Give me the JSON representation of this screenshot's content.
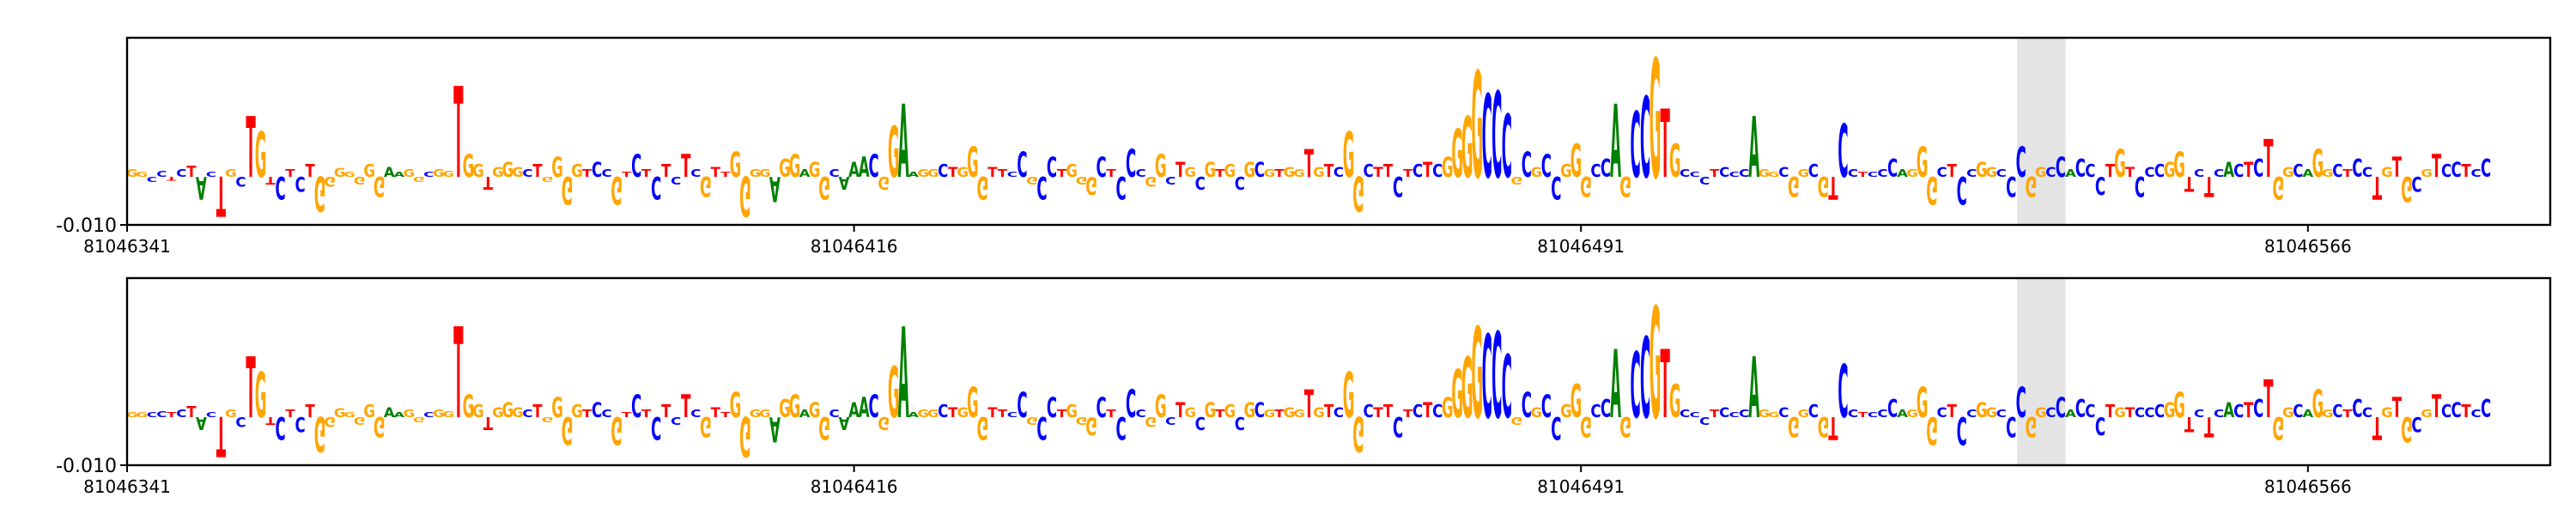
{
  "chart_data": [
    {
      "type": "sequence-logo",
      "title": "",
      "xlabel": "",
      "ylabel": "",
      "y_tick_labels": [
        "-0.010"
      ],
      "x_tick_labels": [
        "81046341",
        "81046416",
        "81046491",
        "81046566"
      ],
      "x_ticks": [
        81046341,
        81046416,
        81046491,
        81046566
      ],
      "xlim": [
        81046341,
        81046591
      ],
      "highlight_range": [
        81046536,
        81046541
      ],
      "highlight_color": "#e4e4e4",
      "base_colors": {
        "A": "#008000",
        "C": "#0000ff",
        "G": "#ffa500",
        "T": "#ff0000"
      },
      "grid": false,
      "legend": "none",
      "sequence": "GGCCTCTACTGCTGTCTCTGGGGGGGAAGGCGGTGGTGGGCTGGGGTCCGTCTCTCTCGTTGGGGAGGAGGCAAACGGAAGGCTGGGTTCCGCCTGGGCTCCCGGCTGCGTGCGCGTGGTGTCGGCTTCTCTCGGGGCCCGCGCCGGGCCAGCCGTGCCCTCCCAGGCGGCGTCCTCCCAGGGCTCCGGCCCGGCCACCCTGTCCCGGTCTCACTCTGGCAGGCTCCTGTGCGTCCTCCTGCCTC",
      "values": [
        0.3,
        0.2,
        -0.2,
        0.25,
        -0.15,
        0.3,
        0.45,
        -0.9,
        0.2,
        -1.6,
        0.3,
        -0.4,
        2.4,
        1.8,
        -0.3,
        -0.9,
        0.3,
        -0.6,
        0.5,
        -1.4,
        -0.4,
        0.35,
        0.2,
        -0.3,
        0.5,
        -0.8,
        0.4,
        0.2,
        0.3,
        -0.2,
        0.2,
        0.3,
        0.25,
        3.6,
        0.9,
        0.5,
        -0.5,
        0.4,
        0.6,
        0.4,
        0.3,
        0.5,
        -0.2,
        0.8,
        -1.1,
        0.5,
        0.3,
        0.6,
        0.3,
        -1.1,
        0.2,
        0.9,
        0.3,
        -0.9,
        0.5,
        -0.3,
        0.9,
        0.3,
        -0.8,
        0.4,
        0.2,
        1.0,
        -1.6,
        0.3,
        0.3,
        -1.0,
        0.7,
        0.9,
        0.3,
        0.6,
        -0.9,
        0.3,
        -0.5,
        0.6,
        0.8,
        0.9,
        -0.5,
        2.0,
        2.9,
        0.2,
        0.3,
        0.3,
        0.5,
        0.4,
        0.4,
        1.2,
        -0.9,
        0.4,
        0.3,
        0.2,
        1.0,
        -0.3,
        -0.9,
        0.8,
        0.3,
        0.5,
        -0.3,
        -0.7,
        0.8,
        0.3,
        -0.9,
        1.1,
        0.3,
        -0.4,
        0.9,
        -0.3,
        0.6,
        0.4,
        -0.5,
        0.6,
        0.3,
        0.5,
        -0.5,
        0.6,
        0.6,
        0.3,
        0.3,
        0.4,
        0.3,
        1.1,
        0.4,
        0.5,
        0.4,
        1.8,
        -1.4,
        0.5,
        0.4,
        0.5,
        -0.8,
        0.3,
        0.5,
        0.6,
        0.5,
        0.8,
        1.9,
        2.4,
        4.2,
        3.3,
        3.4,
        2.5,
        -0.3,
        1.0,
        0.4,
        0.9,
        -0.9,
        0.5,
        1.3,
        -0.8,
        0.5,
        0.7,
        2.9,
        -0.8,
        2.6,
        3.2,
        4.7,
        2.7,
        1.3,
        0.3,
        0.2,
        -0.3,
        0.3,
        0.4,
        0.2,
        0.3,
        2.4,
        0.3,
        0.2,
        0.4,
        -0.8,
        0.3,
        0.5,
        -0.8,
        -0.9,
        2.1,
        0.3,
        0.2,
        0.2,
        0.3,
        0.7,
        0.3,
        0.3,
        1.2,
        -1.1,
        0.4,
        0.5,
        -1.1,
        0.3,
        0.6,
        0.4,
        0.3,
        -0.8,
        1.2,
        -0.8,
        0.4,
        0.4,
        0.8,
        0.3,
        0.7,
        0.5,
        -0.7,
        0.5,
        1.1,
        0.4,
        -0.8,
        0.4,
        0.5,
        0.6,
        1.0,
        -0.6,
        0.3,
        -0.8,
        0.3,
        0.6,
        0.5,
        0.6,
        0.7,
        1.5,
        -0.9,
        0.4,
        0.5,
        0.3,
        1.1,
        0.3,
        0.5,
        0.3,
        0.7,
        0.4,
        -0.9,
        0.4,
        0.8,
        -1.0,
        -0.6,
        0.3,
        0.9,
        0.5,
        0.6,
        0.5,
        0.3,
        0.7
      ],
      "values_alt": [
        0.2,
        0.2,
        0.2,
        0.25,
        0.2,
        0.3,
        0.45,
        -0.5,
        0.2,
        -1.6,
        0.3,
        -0.4,
        2.4,
        1.8,
        -0.3,
        -0.9,
        0.3,
        -0.6,
        0.5,
        -1.4,
        -0.4,
        0.35,
        0.2,
        -0.3,
        0.5,
        -0.8,
        0.4,
        0.2,
        0.3,
        -0.2,
        0.2,
        0.3,
        0.25,
        3.6,
        0.9,
        0.5,
        -0.5,
        0.4,
        0.6,
        0.4,
        0.3,
        0.5,
        -0.2,
        0.8,
        -1.1,
        0.5,
        0.3,
        0.6,
        0.3,
        -1.1,
        0.2,
        0.9,
        0.3,
        -0.9,
        0.5,
        -0.3,
        0.9,
        0.3,
        -0.8,
        0.4,
        0.2,
        1.0,
        -1.6,
        0.3,
        0.3,
        -1.0,
        0.7,
        0.9,
        0.3,
        0.6,
        -0.9,
        0.3,
        -0.5,
        0.6,
        0.8,
        0.9,
        -0.5,
        2.0,
        3.6,
        0.2,
        0.3,
        0.3,
        0.5,
        0.4,
        0.4,
        1.2,
        -0.9,
        0.4,
        0.3,
        0.2,
        1.0,
        -0.3,
        -0.9,
        0.8,
        0.3,
        0.5,
        -0.3,
        -0.7,
        0.8,
        0.3,
        -0.9,
        1.1,
        0.3,
        -0.4,
        0.9,
        -0.3,
        0.6,
        0.4,
        -0.5,
        0.6,
        0.3,
        0.5,
        -0.5,
        0.6,
        0.6,
        0.3,
        0.3,
        0.4,
        0.3,
        1.1,
        0.4,
        0.5,
        0.4,
        1.8,
        -1.4,
        0.5,
        0.4,
        0.5,
        -0.8,
        0.3,
        0.5,
        0.6,
        0.5,
        0.8,
        1.9,
        2.4,
        3.6,
        3.3,
        3.4,
        2.5,
        -0.3,
        1.0,
        0.4,
        0.9,
        -0.9,
        0.5,
        1.3,
        -0.8,
        0.5,
        0.7,
        2.7,
        -0.8,
        2.6,
        3.2,
        4.4,
        2.7,
        1.3,
        0.3,
        0.2,
        -0.3,
        0.3,
        0.4,
        0.2,
        0.3,
        2.4,
        0.3,
        0.2,
        0.4,
        -0.8,
        0.3,
        0.5,
        -0.8,
        -0.9,
        2.1,
        0.3,
        0.2,
        0.2,
        0.3,
        0.7,
        0.3,
        0.3,
        1.2,
        -1.1,
        0.4,
        0.5,
        -1.1,
        0.3,
        0.6,
        0.4,
        0.3,
        -0.8,
        1.2,
        -0.8,
        0.4,
        0.4,
        0.8,
        0.3,
        0.7,
        0.5,
        -0.7,
        0.5,
        0.4,
        0.4,
        0.4,
        0.4,
        0.5,
        0.6,
        1.0,
        -0.6,
        0.3,
        -0.8,
        0.3,
        0.6,
        0.5,
        0.6,
        0.7,
        1.5,
        -0.9,
        0.4,
        0.5,
        0.3,
        1.1,
        0.3,
        0.5,
        0.3,
        0.7,
        0.4,
        -0.9,
        0.4,
        0.8,
        -1.0,
        -0.6,
        0.3,
        0.9,
        0.5,
        0.6,
        0.5,
        0.3,
        0.7
      ],
      "ylim": [
        -1.9,
        5.5
      ],
      "baseline": 0
    }
  ]
}
